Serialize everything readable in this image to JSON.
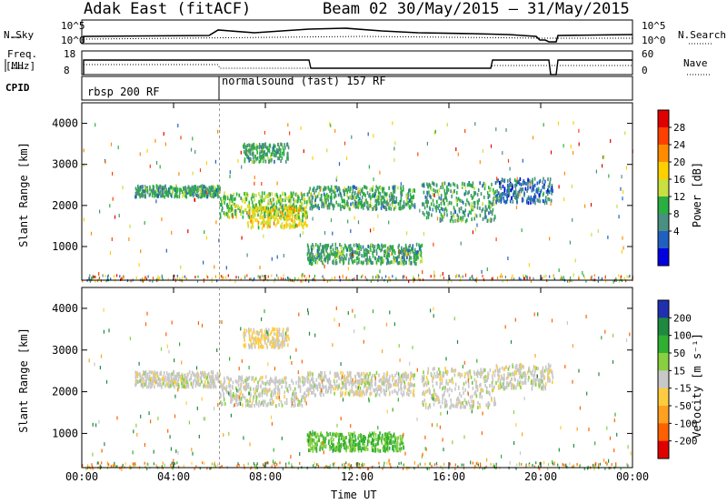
{
  "header": {
    "title": "Adak East (fitACF)",
    "beam_info": "Beam 02 30/May/2015 – 31/May/2015"
  },
  "status_panels": {
    "nsky_label": "N.Sky",
    "nsky_ticks": [
      "10^5",
      "10^0"
    ],
    "nsearch_label": "N.Search",
    "nsearch_ticks": [
      "10^5",
      "10^0"
    ],
    "freq_label_line1": "Freq.",
    "freq_label_line2": "[MHz]",
    "freq_ticks": [
      "18",
      "8"
    ],
    "nave_label": "Nave",
    "nave_ticks": [
      "60",
      "0"
    ],
    "cpid_label": "CPID",
    "cpid_segments": [
      "rbsp 200 RF",
      "normalsound (fast) 157 RF"
    ]
  },
  "power_colorbar": {
    "label": "Power [dB]",
    "ticks": [
      "28",
      "24",
      "20",
      "16",
      "12",
      "8",
      "4"
    ],
    "colors": [
      "#e00000",
      "#ff4000",
      "#ff8c00",
      "#ffd000",
      "#c8e040",
      "#2ab040",
      "#4a9080",
      "#2060c0",
      "#0000e0"
    ]
  },
  "velocity_colorbar": {
    "label": "Velocity [m s⁻¹]",
    "ticks": [
      "200",
      "100",
      "50",
      "15",
      "-15",
      "-50",
      "-100",
      "-200"
    ],
    "colors": [
      "#2030b0",
      "#1e8a40",
      "#30b030",
      "#88d040",
      "#c8c8c8",
      "#ffcc40",
      "#ffa020",
      "#ff6000",
      "#e00000"
    ]
  },
  "axis_labels": {
    "y": "Slant Range [km]",
    "x": "Time UT"
  },
  "chart_data": [
    {
      "type": "heatmap",
      "title": "Power",
      "ylabel": "Slant Range [km]",
      "xlabel": "Time UT",
      "x_ticks": [
        "00:00",
        "04:00",
        "08:00",
        "12:00",
        "16:00",
        "20:00",
        "00:00"
      ],
      "y_ticks": [
        "1000",
        "2000",
        "3000",
        "4000"
      ],
      "xlim_hours": [
        0,
        24
      ],
      "ylim_km": [
        180,
        4500
      ],
      "colorbar": "Power [dB]",
      "echo_regions": [
        {
          "t0": 2.3,
          "t1": 6.0,
          "r0": 2250,
          "r1": 2520,
          "value": 8
        },
        {
          "t0": 6.0,
          "t1": 9.8,
          "r0": 1750,
          "r1": 2350,
          "value": 12
        },
        {
          "t0": 7.2,
          "t1": 9.8,
          "r0": 1500,
          "r1": 2000,
          "value": 16
        },
        {
          "t0": 9.8,
          "t1": 14.5,
          "r0": 1950,
          "r1": 2500,
          "value": 8
        },
        {
          "t0": 9.8,
          "t1": 14.8,
          "r0": 620,
          "r1": 1100,
          "value": 8
        },
        {
          "t0": 14.8,
          "t1": 18.0,
          "r0": 1650,
          "r1": 2600,
          "value": 8
        },
        {
          "t0": 18.0,
          "t1": 20.5,
          "r0": 2100,
          "r1": 2700,
          "value": 4
        },
        {
          "t0": 7.0,
          "t1": 9.0,
          "r0": 3100,
          "r1": 3550,
          "value": 8
        }
      ]
    },
    {
      "type": "heatmap",
      "title": "Velocity",
      "ylabel": "Slant Range [km]",
      "xlabel": "Time UT",
      "x_ticks": [
        "00:00",
        "04:00",
        "08:00",
        "12:00",
        "16:00",
        "20:00",
        "00:00"
      ],
      "y_ticks": [
        "1000",
        "2000",
        "3000",
        "4000"
      ],
      "xlim_hours": [
        0,
        24
      ],
      "ylim_km": [
        180,
        4500
      ],
      "colorbar": "Velocity [m s⁻¹]",
      "echo_regions": [
        {
          "t0": 2.3,
          "t1": 6.0,
          "r0": 2150,
          "r1": 2520,
          "value": 0
        },
        {
          "t0": 6.0,
          "t1": 9.8,
          "r0": 1700,
          "r1": 2400,
          "value": 0
        },
        {
          "t0": 9.8,
          "t1": 14.5,
          "r0": 1950,
          "r1": 2500,
          "value": 0
        },
        {
          "t0": 9.8,
          "t1": 14.0,
          "r0": 620,
          "r1": 1050,
          "value": 50
        },
        {
          "t0": 14.8,
          "t1": 18.0,
          "r0": 1650,
          "r1": 2600,
          "value": 0
        },
        {
          "t0": 18.0,
          "t1": 20.5,
          "r0": 2100,
          "r1": 2700,
          "value": 0
        },
        {
          "t0": 7.0,
          "t1": 9.0,
          "r0": 3100,
          "r1": 3550,
          "value": -15
        }
      ]
    }
  ]
}
